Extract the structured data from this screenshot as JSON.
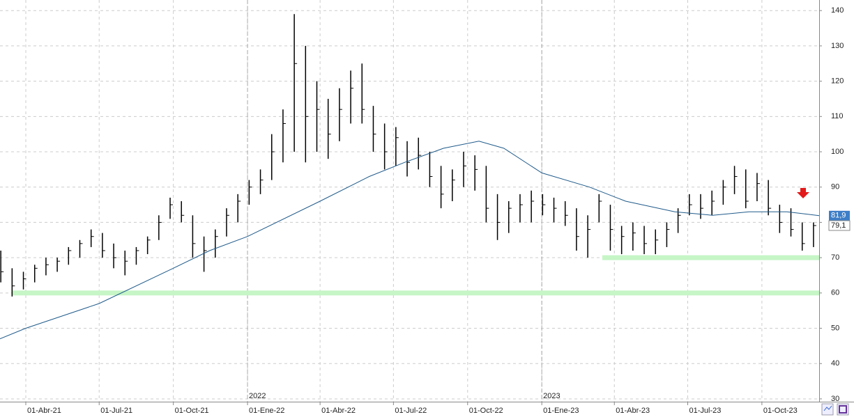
{
  "chart_data": {
    "type": "ohlc",
    "xlim": [
      "2021-02-28",
      "2023-12-11"
    ],
    "ylim": [
      29.2,
      143
    ],
    "yticks": [
      30,
      40,
      50,
      60,
      70,
      80,
      90,
      100,
      110,
      120,
      130,
      140
    ],
    "xticks": [
      {
        "value": "2021-04-01",
        "label": "01-Abr-21"
      },
      {
        "value": "2021-07-01",
        "label": "01-Jul-21"
      },
      {
        "value": "2021-10-01",
        "label": "01-Oct-21"
      },
      {
        "value": "2022-01-01",
        "label": "01-Ene-22"
      },
      {
        "value": "2022-04-01",
        "label": "01-Abr-22"
      },
      {
        "value": "2022-07-01",
        "label": "01-Jul-22"
      },
      {
        "value": "2022-10-01",
        "label": "01-Oct-22"
      },
      {
        "value": "2023-01-01",
        "label": "01-Ene-23"
      },
      {
        "value": "2023-04-01",
        "label": "01-Abr-23"
      },
      {
        "value": "2023-07-01",
        "label": "01-Jul-23"
      },
      {
        "value": "2023-10-01",
        "label": "01-Oct-23"
      }
    ],
    "years": [
      {
        "value": "2022-01-01",
        "label": "2022"
      },
      {
        "value": "2023-01-01",
        "label": "2023"
      }
    ],
    "grid": true,
    "ohlc": {
      "color": "#000000",
      "last_label": "79,1",
      "x": [
        "2021-03-01",
        "2021-03-15",
        "2021-03-29",
        "2021-04-12",
        "2021-04-26",
        "2021-05-10",
        "2021-05-24",
        "2021-06-07",
        "2021-06-21",
        "2021-07-05",
        "2021-07-19",
        "2021-08-02",
        "2021-08-16",
        "2021-08-30",
        "2021-09-13",
        "2021-09-27",
        "2021-10-11",
        "2021-10-25",
        "2021-11-08",
        "2021-11-22",
        "2021-12-06",
        "2021-12-20",
        "2022-01-03",
        "2022-01-17",
        "2022-01-31",
        "2022-02-14",
        "2022-02-28",
        "2022-03-14",
        "2022-03-28",
        "2022-04-11",
        "2022-04-25",
        "2022-05-09",
        "2022-05-23",
        "2022-06-06",
        "2022-06-20",
        "2022-07-04",
        "2022-07-18",
        "2022-08-01",
        "2022-08-15",
        "2022-08-29",
        "2022-09-12",
        "2022-09-26",
        "2022-10-10",
        "2022-10-24",
        "2022-11-07",
        "2022-11-21",
        "2022-12-05",
        "2022-12-19",
        "2023-01-02",
        "2023-01-16",
        "2023-01-30",
        "2023-02-13",
        "2023-02-27",
        "2023-03-13",
        "2023-03-27",
        "2023-04-10",
        "2023-04-24",
        "2023-05-08",
        "2023-05-22",
        "2023-06-05",
        "2023-06-19",
        "2023-07-03",
        "2023-07-17",
        "2023-07-31",
        "2023-08-14",
        "2023-08-28",
        "2023-09-11",
        "2023-09-25",
        "2023-10-09",
        "2023-10-23",
        "2023-11-06",
        "2023-11-20",
        "2023-12-04"
      ],
      "high": [
        72,
        67,
        66,
        68,
        70,
        70,
        73,
        75,
        78,
        77,
        74,
        72,
        73,
        76,
        82,
        87,
        86,
        82,
        76,
        78,
        84,
        88,
        92,
        95,
        105,
        112,
        139,
        130,
        120,
        115,
        118,
        123,
        125,
        113,
        108,
        107,
        103,
        104,
        100,
        96,
        95,
        100,
        99,
        96,
        88,
        86,
        88,
        89,
        88,
        87,
        86,
        84,
        82,
        88,
        85,
        79,
        80,
        79,
        78,
        80,
        84,
        88,
        88,
        89,
        92,
        96,
        95,
        94,
        92,
        85,
        84,
        80,
        80
      ],
      "low": [
        63,
        59,
        61,
        63,
        65,
        66,
        68,
        70,
        73,
        70,
        67,
        65,
        68,
        71,
        75,
        81,
        80,
        70,
        66,
        70,
        76,
        80,
        85,
        88,
        92,
        97,
        100,
        97,
        100,
        98,
        103,
        108,
        108,
        100,
        95,
        96,
        93,
        95,
        90,
        84,
        86,
        90,
        89,
        80,
        75,
        77,
        80,
        80,
        82,
        80,
        79,
        72,
        70,
        80,
        72,
        71,
        72,
        71,
        71,
        73,
        77,
        82,
        81,
        82,
        85,
        88,
        84,
        86,
        82,
        77,
        76,
        72,
        73
      ],
      "close": [
        66,
        62,
        64,
        67,
        68,
        69,
        72,
        74,
        76,
        72,
        70,
        69,
        72,
        75,
        80,
        85,
        82,
        74,
        72,
        76,
        82,
        86,
        90,
        92,
        100,
        108,
        125,
        110,
        112,
        105,
        112,
        118,
        112,
        105,
        100,
        104,
        97,
        99,
        93,
        88,
        92,
        96,
        95,
        84,
        80,
        84,
        85,
        86,
        85,
        84,
        82,
        76,
        78,
        86,
        78,
        76,
        77,
        74,
        75,
        78,
        82,
        85,
        84,
        86,
        90,
        93,
        86,
        91,
        84,
        80,
        78,
        74,
        79.1
      ]
    },
    "ma": {
      "color": "#1f5a8a",
      "last_label": "81,9",
      "x": [
        "2021-02-28",
        "2021-04-01",
        "2021-07-01",
        "2021-10-01",
        "2021-11-15",
        "2022-01-01",
        "2022-04-01",
        "2022-06-01",
        "2022-07-15",
        "2022-09-01",
        "2022-10-15",
        "2022-11-15",
        "2023-01-01",
        "2023-03-01",
        "2023-04-15",
        "2023-06-15",
        "2023-08-01",
        "2023-09-15",
        "2023-11-01",
        "2023-12-11"
      ],
      "values": [
        47,
        50,
        57,
        67,
        72,
        76,
        86,
        93,
        97,
        101,
        103,
        101,
        94,
        90,
        86,
        83,
        82,
        83,
        83,
        81.9
      ]
    },
    "hlines": [
      {
        "value": 70,
        "from": "2023-03-17"
      },
      {
        "value": 60,
        "from": "2021-03-15"
      }
    ],
    "hline_color": "#c6f5c6"
  }
}
